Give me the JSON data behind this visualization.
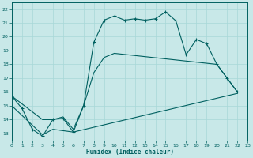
{
  "bg_color": "#c8e8e8",
  "line_color": "#006060",
  "grid_color": "#a8d8d8",
  "xlabel": "Humidex (Indice chaleur)",
  "xlim": [
    0,
    23
  ],
  "ylim": [
    12.5,
    22.5
  ],
  "xtick_vals": [
    0,
    1,
    2,
    3,
    4,
    5,
    6,
    7,
    8,
    9,
    10,
    11,
    12,
    13,
    14,
    15,
    16,
    17,
    18,
    19,
    20,
    21,
    22,
    23
  ],
  "ytick_vals": [
    13,
    14,
    15,
    16,
    17,
    18,
    19,
    20,
    21,
    22
  ],
  "curve1_x": [
    0,
    1,
    2,
    3,
    4,
    5,
    6,
    7,
    8,
    9,
    10,
    11,
    12,
    13,
    14,
    15,
    16,
    17,
    18,
    19,
    20,
    21,
    22
  ],
  "curve1_y": [
    15.7,
    14.8,
    13.3,
    12.8,
    14.0,
    14.1,
    13.1,
    15.0,
    19.6,
    21.2,
    21.5,
    21.2,
    21.3,
    21.2,
    21.3,
    21.8,
    21.15,
    18.7,
    19.8,
    19.5,
    18.0,
    17.0,
    16.0
  ],
  "curve2_x": [
    0,
    3,
    4,
    5,
    6,
    7,
    8,
    9,
    10,
    20,
    21,
    22
  ],
  "curve2_y": [
    15.7,
    14.0,
    14.0,
    14.2,
    13.3,
    15.0,
    17.4,
    18.5,
    18.8,
    18.0,
    17.0,
    16.0
  ],
  "curve3_x": [
    0,
    3,
    4,
    5,
    6,
    22
  ],
  "curve3_y": [
    15.0,
    12.9,
    13.3,
    13.2,
    13.1,
    15.9
  ]
}
